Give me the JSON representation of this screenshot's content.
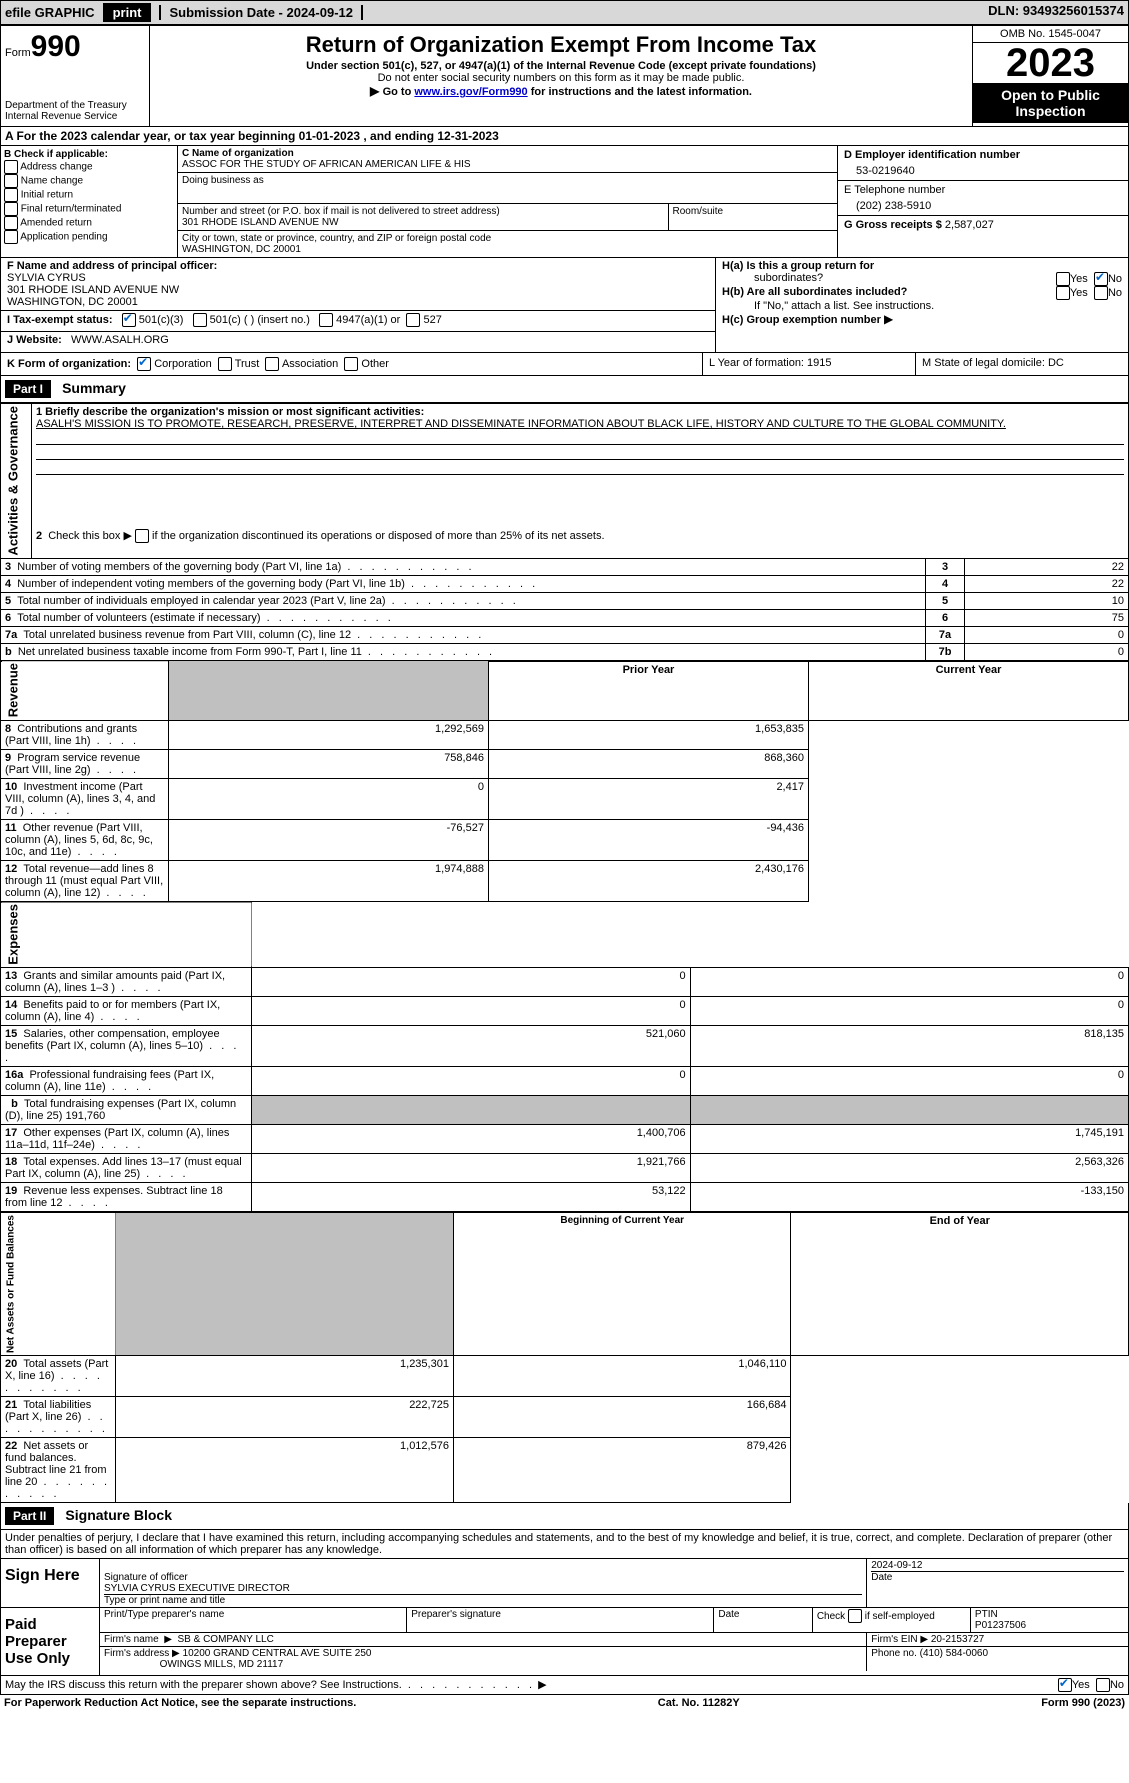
{
  "top_bar": {
    "efile": "efile GRAPHIC",
    "print": "print",
    "sub_date_label": "Submission Date - 2024-09-12",
    "dln_label": "DLN: 93493256015374"
  },
  "header": {
    "form_prefix": "Form",
    "form_number": "990",
    "dept": "Department of the Treasury Internal Revenue Service",
    "title": "Return of Organization Exempt From Income Tax",
    "subtitle": "Under section 501(c), 527, or 4947(a)(1) of the Internal Revenue Code (except private foundations)",
    "ssn_note": "Do not enter social security numbers on this form as it may be made public.",
    "goto_prefix": "Go to ",
    "goto_link": "www.irs.gov/Form990",
    "goto_suffix": " for instructions and the latest information.",
    "omb": "OMB No. 1545-0047",
    "year": "2023",
    "public": "Open to Public Inspection"
  },
  "row_a": "A For the 2023 calendar year, or tax year beginning 01-01-2023   , and ending 12-31-2023",
  "col_b": {
    "label": "B Check if applicable:",
    "items": [
      "Address change",
      "Name change",
      "Initial return",
      "Final return/terminated",
      "Amended return",
      "Application pending"
    ]
  },
  "col_c": {
    "name_label": "C Name of organization",
    "name": "ASSOC FOR THE STUDY OF AFRICAN AMERICAN LIFE & HIS",
    "dba_label": "Doing business as",
    "addr_label": "Number and street (or P.O. box if mail is not delivered to street address)",
    "addr": "301 RHODE ISLAND AVENUE NW",
    "suite_label": "Room/suite",
    "city_label": "City or town, state or province, country, and ZIP or foreign postal code",
    "city": "WASHINGTON, DC  20001"
  },
  "col_d": {
    "ein_label": "D Employer identification number",
    "ein": "53-0219640",
    "phone_label": "E Telephone number",
    "phone": "(202) 238-5910",
    "gross_label": "G Gross receipts $",
    "gross": "2,587,027"
  },
  "row_f": {
    "label": "F  Name and address of principal officer:",
    "name": "SYLVIA CYRUS",
    "addr1": "301 RHODE ISLAND AVENUE NW",
    "addr2": "WASHINGTON, DC  20001"
  },
  "row_h": {
    "a_label": "H(a)  Is this a group return for",
    "a_label2": "subordinates?",
    "b_label": "H(b)  Are all subordinates included?",
    "b_note": "If \"No,\" attach a list. See instructions.",
    "c_label": "H(c)  Group exemption number",
    "yes": "Yes",
    "no": "No"
  },
  "row_i": {
    "label": "I   Tax-exempt status:",
    "c3": "501(c)(3)",
    "c": "501(c) (  ) (insert no.)",
    "a1": "4947(a)(1) or",
    "s527": "527"
  },
  "row_j": {
    "label": "J   Website:",
    "value": "WWW.ASALH.ORG"
  },
  "row_k": {
    "label": "K Form of organization:",
    "corp": "Corporation",
    "trust": "Trust",
    "assoc": "Association",
    "other": "Other",
    "l_label": "L Year of formation: 1915",
    "m_label": "M State of legal domicile: DC"
  },
  "part1": {
    "header": "Part I",
    "title": "Summary",
    "q1": "1   Briefly describe the organization's mission or most significant activities:",
    "mission": "ASALH'S MISSION IS TO PROMOTE, RESEARCH, PRESERVE, INTERPRET AND DISSEMINATE INFORMATION ABOUT BLACK LIFE, HISTORY AND CULTURE TO THE GLOBAL COMMUNITY.",
    "q2": "2   Check this box         if the organization discontinued its operations or disposed of more than 25% of its net assets.",
    "side_ag": "Activities & Governance",
    "side_rev": "Revenue",
    "side_exp": "Expenses",
    "side_net": "Net Assets or Fund Balances",
    "prior_year": "Prior Year",
    "current_year": "Current Year",
    "begin_year": "Beginning of Current Year",
    "end_year": "End of Year",
    "lines_top": [
      {
        "n": "3",
        "t": "Number of voting members of the governing body (Part VI, line 1a)",
        "v": "22"
      },
      {
        "n": "4",
        "t": "Number of independent voting members of the governing body (Part VI, line 1b)",
        "v": "22"
      },
      {
        "n": "5",
        "t": "Total number of individuals employed in calendar year 2023 (Part V, line 2a)",
        "v": "10"
      },
      {
        "n": "6",
        "t": "Total number of volunteers (estimate if necessary)",
        "v": "75"
      },
      {
        "n": "7a",
        "t": "Total unrelated business revenue from Part VIII, column (C), line 12",
        "v": "0"
      },
      {
        "n": "b",
        "t": "Net unrelated business taxable income from Form 990-T, Part I, line 11",
        "v2": "7b",
        "v": "0"
      }
    ],
    "lines_rev": [
      {
        "n": "8",
        "t": "Contributions and grants (Part VIII, line 1h)",
        "py": "1,292,569",
        "cy": "1,653,835"
      },
      {
        "n": "9",
        "t": "Program service revenue (Part VIII, line 2g)",
        "py": "758,846",
        "cy": "868,360"
      },
      {
        "n": "10",
        "t": "Investment income (Part VIII, column (A), lines 3, 4, and 7d )",
        "py": "0",
        "cy": "2,417"
      },
      {
        "n": "11",
        "t": "Other revenue (Part VIII, column (A), lines 5, 6d, 8c, 9c, 10c, and 11e)",
        "py": "-76,527",
        "cy": "-94,436"
      },
      {
        "n": "12",
        "t": "Total revenue—add lines 8 through 11 (must equal Part VIII, column (A), line 12)",
        "py": "1,974,888",
        "cy": "2,430,176"
      }
    ],
    "lines_exp": [
      {
        "n": "13",
        "t": "Grants and similar amounts paid (Part IX, column (A), lines 1–3 )",
        "py": "0",
        "cy": "0"
      },
      {
        "n": "14",
        "t": "Benefits paid to or for members (Part IX, column (A), line 4)",
        "py": "0",
        "cy": "0"
      },
      {
        "n": "15",
        "t": "Salaries, other compensation, employee benefits (Part IX, column (A), lines 5–10)",
        "py": "521,060",
        "cy": "818,135"
      },
      {
        "n": "16a",
        "t": "Professional fundraising fees (Part IX, column (A), line 11e)",
        "py": "0",
        "cy": "0"
      },
      {
        "n": "b",
        "t": "Total fundraising expenses (Part IX, column (D), line 25) 191,760",
        "shaded": true
      },
      {
        "n": "17",
        "t": "Other expenses (Part IX, column (A), lines 11a–11d, 11f–24e)",
        "py": "1,400,706",
        "cy": "1,745,191"
      },
      {
        "n": "18",
        "t": "Total expenses. Add lines 13–17 (must equal Part IX, column (A), line 25)",
        "py": "1,921,766",
        "cy": "2,563,326"
      },
      {
        "n": "19",
        "t": "Revenue less expenses. Subtract line 18 from line 12",
        "py": "53,122",
        "cy": "-133,150"
      }
    ],
    "lines_net": [
      {
        "n": "20",
        "t": "Total assets (Part X, line 16)",
        "py": "1,235,301",
        "cy": "1,046,110"
      },
      {
        "n": "21",
        "t": "Total liabilities (Part X, line 26)",
        "py": "222,725",
        "cy": "166,684"
      },
      {
        "n": "22",
        "t": "Net assets or fund balances. Subtract line 21 from line 20",
        "py": "1,012,576",
        "cy": "879,426"
      }
    ]
  },
  "part2": {
    "header": "Part II",
    "title": "Signature Block",
    "penalties": "Under penalties of perjury, I declare that I have examined this return, including accompanying schedules and statements, and to the best of my knowledge and belief, it is true, correct, and complete. Declaration of preparer (other than officer) is based on all information of which preparer has any knowledge."
  },
  "sign": {
    "here": "Sign Here",
    "sig_label": "Signature of officer",
    "officer": "SYLVIA CYRUS  EXECUTIVE DIRECTOR",
    "type_label": "Type or print name and title",
    "date_label": "Date",
    "date": "2024-09-12"
  },
  "preparer": {
    "label": "Paid Preparer Use Only",
    "print_label": "Print/Type preparer's name",
    "sig_label": "Preparer's signature",
    "date_label": "Date",
    "check_label": "Check           if self-employed",
    "ptin_label": "PTIN",
    "ptin": "P01237506",
    "firm_label": "Firm's name",
    "firm": "SB & COMPANY LLC",
    "ein_label": "Firm's EIN",
    "ein": "20-2153727",
    "addr_label": "Firm's address",
    "addr1": "10200 GRAND CENTRAL AVE SUITE 250",
    "addr2": "OWINGS MILLS, MD  21117",
    "phone_label": "Phone no.",
    "phone": "(410) 584-0060",
    "discuss": "May the IRS discuss this return with the preparer shown above? See Instructions.",
    "yes": "Yes",
    "no": "No"
  },
  "footer": {
    "paperwork": "For Paperwork Reduction Act Notice, see the separate instructions.",
    "cat": "Cat. No. 11282Y",
    "form": "Form 990 (2023)"
  }
}
